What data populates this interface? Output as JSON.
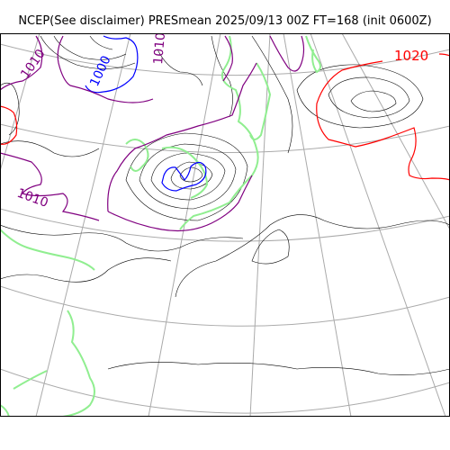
{
  "title": "NCEP(See disclaimer) PRESmean 2025/09/13 00Z FT=168 (init 0600Z)",
  "contour_labels": [
    {
      "text": "1010",
      "color": "#800080"
    },
    {
      "text": "1000",
      "color": "#0000ff"
    },
    {
      "text": "1010",
      "color": "#800080"
    },
    {
      "text": "1010",
      "color": "#800080"
    },
    {
      "text": "1020",
      "color": "#ff0000"
    }
  ],
  "colors": {
    "coastline": "#90ee90",
    "graticule": "#aaaaaa",
    "isobar": "#000000",
    "isobar_1000": "#0000ff",
    "isobar_1010": "#800080",
    "isobar_1020": "#ff0000"
  }
}
